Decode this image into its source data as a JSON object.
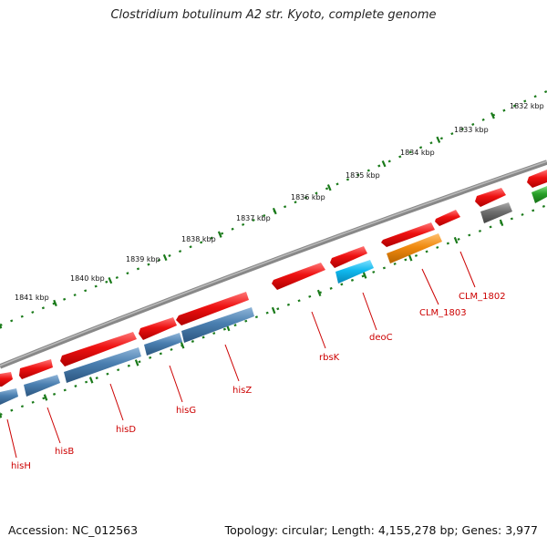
{
  "title": "Clostridium botulinum A2 str. Kyoto, complete genome",
  "footer": {
    "accession": "Accession: NC_012563",
    "summary": "Topology: circular; Length: 4,155,278 bp; Genes: 3,977"
  },
  "ticks": [
    {
      "label": "1832 kbp"
    },
    {
      "label": "1833 kbp"
    },
    {
      "label": "1834 kbp"
    },
    {
      "label": "1835 kbp"
    },
    {
      "label": "1836 kbp"
    },
    {
      "label": "1837 kbp"
    },
    {
      "label": "1838 kbp"
    },
    {
      "label": "1839 kbp"
    },
    {
      "label": "1840 kbp"
    },
    {
      "label": "1841 kbp"
    }
  ],
  "gene_labels": [
    {
      "label": "hisH"
    },
    {
      "label": "hisB"
    },
    {
      "label": "hisD"
    },
    {
      "label": "hisG"
    },
    {
      "label": "hisZ"
    },
    {
      "label": "rbsK"
    },
    {
      "label": "deoC"
    },
    {
      "label": "CLM_1803"
    },
    {
      "label": "CLM_1802"
    }
  ],
  "colors": {
    "cds": "#ee1111",
    "gene_blue": "#4a7fb0",
    "gene_cyan": "#10b8ee",
    "gene_orange": "#f08a10",
    "gene_gray": "#6e6e6e",
    "gene_green": "#2aa02a",
    "backbone": "#888888",
    "tick": "#1a7a1a",
    "label": "#cc0000"
  }
}
